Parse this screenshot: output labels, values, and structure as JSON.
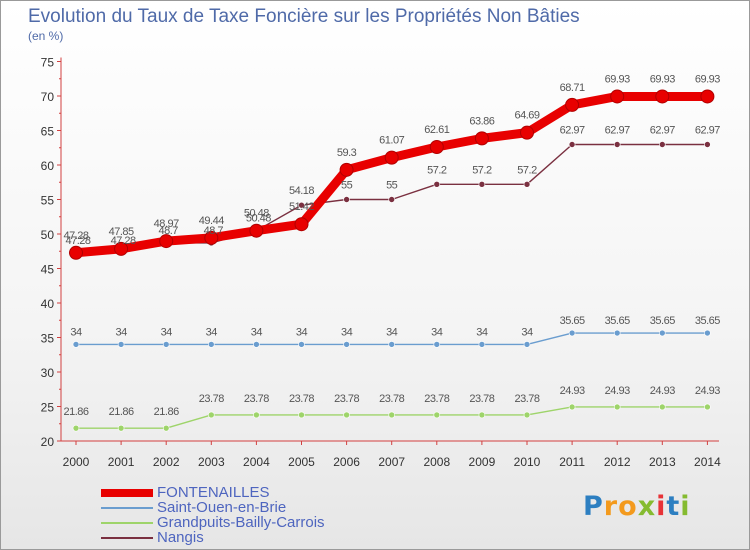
{
  "title": "Evolution du Taux de Taxe Foncière sur les Propriétés Non Bâties",
  "unit": "(en %)",
  "brand": "Proxiti",
  "chart_data": {
    "type": "line",
    "title": "Evolution du Taux de Taxe Foncière sur les Propriétés Non Bâties",
    "ylabel": "(en %)",
    "xlabel": "",
    "ylim": [
      20,
      75
    ],
    "yticks": [
      20,
      25,
      30,
      35,
      40,
      45,
      50,
      55,
      60,
      65,
      70,
      75
    ],
    "grid": false,
    "legend": "bottom-left",
    "x": [
      "2000",
      "2001",
      "2002",
      "2003",
      "2004",
      "2005",
      "2006",
      "2007",
      "2008",
      "2009",
      "2010",
      "2011",
      "2012",
      "2013",
      "2014"
    ],
    "series": [
      {
        "name": "FONTENAILLES",
        "color": "#e80000",
        "values": [
          47.28,
          47.85,
          48.97,
          49.44,
          50.48,
          51.42,
          59.3,
          61.07,
          62.61,
          63.86,
          64.69,
          68.71,
          69.93,
          69.93,
          69.93
        ],
        "labels": [
          "47.28",
          "47.85",
          "48.97",
          "49.44",
          "50.48",
          "51.42",
          "59.3",
          "61.07",
          "62.61",
          "63.86",
          "64.69",
          "68.71",
          "69.93",
          "69.93",
          "69.93"
        ]
      },
      {
        "name": "Saint-Ouen-en-Brie",
        "color": "#6a9dcf",
        "values": [
          34,
          34,
          34,
          34,
          34,
          34,
          34,
          34,
          34,
          34,
          34,
          35.65,
          35.65,
          35.65,
          35.65
        ],
        "labels": [
          "34",
          "34",
          "34",
          "34",
          "34",
          "34",
          "34",
          "34",
          "34",
          "34",
          "34",
          "35.65",
          "35.65",
          "35.65",
          "35.65"
        ]
      },
      {
        "name": "Grandpuits-Bailly-Carrois",
        "color": "#9ed46a",
        "values": [
          21.86,
          21.86,
          21.86,
          23.78,
          23.78,
          23.78,
          23.78,
          23.78,
          23.78,
          23.78,
          23.78,
          24.93,
          24.93,
          24.93,
          24.93
        ],
        "labels": [
          "21.86",
          "21.86",
          "21.86",
          "23.78",
          "23.78",
          "23.78",
          "23.78",
          "23.78",
          "23.78",
          "23.78",
          "23.78",
          "24.93",
          "24.93",
          "24.93",
          "24.93"
        ]
      },
      {
        "name": "Nangis",
        "color": "#7a3040",
        "values": [
          47.28,
          47.28,
          48.7,
          48.7,
          50.48,
          54.18,
          55,
          55,
          57.2,
          57.2,
          57.2,
          62.97,
          62.97,
          62.97,
          62.97
        ],
        "labels": [
          "47.28",
          "47.28",
          "48.7",
          "48.7",
          "50.48",
          "54.18",
          "55",
          "55",
          "57.2",
          "57.2",
          "57.2",
          "62.97",
          "62.97",
          "62.97",
          "62.97"
        ]
      }
    ]
  }
}
